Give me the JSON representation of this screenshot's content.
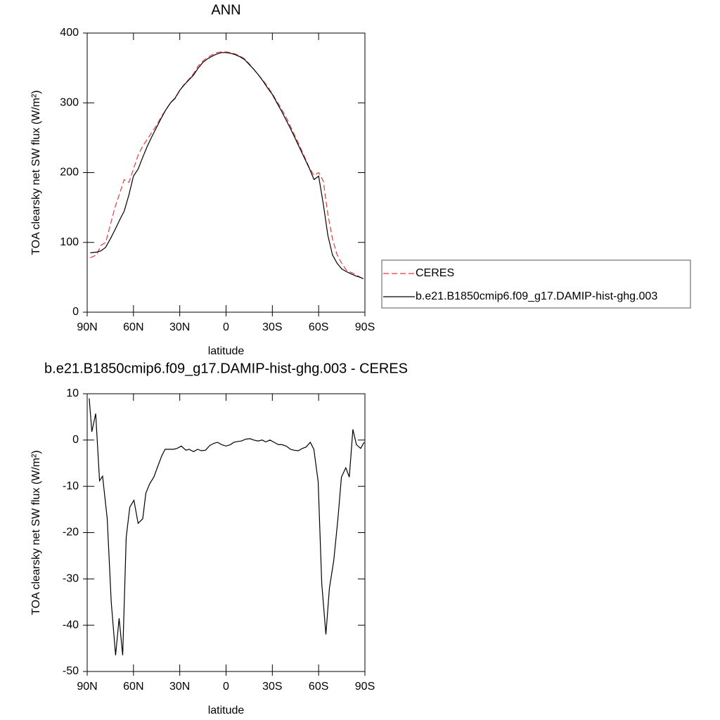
{
  "chart_data": [
    {
      "type": "line",
      "title": "ANN",
      "x_label": "latitude",
      "y_label": "TOA clearsky net SW flux (W/m²)",
      "x": [
        88,
        84,
        81,
        78,
        75,
        72,
        69,
        66,
        63,
        60,
        57,
        54,
        51,
        48,
        45,
        42,
        39,
        36,
        33,
        30,
        27,
        24,
        21,
        18,
        15,
        12,
        9,
        6,
        3,
        0,
        -3,
        -6,
        -9,
        -12,
        -15,
        -18,
        -21,
        -24,
        -27,
        -30,
        -33,
        -36,
        -39,
        -42,
        -45,
        -48,
        -51,
        -54,
        -57,
        -60,
        -63,
        -66,
        -69,
        -72,
        -75,
        -78,
        -81,
        -84,
        -87,
        -89
      ],
      "series": [
        {
          "name": "CERES",
          "color": "#e8383d",
          "dashed": true,
          "values": [
            78,
            82,
            96,
            100,
            125,
            150,
            170,
            190,
            186,
            205,
            225,
            238,
            248,
            258,
            268,
            280,
            290,
            300,
            306,
            318,
            327,
            334,
            342,
            353,
            360,
            365,
            369,
            372,
            373,
            373,
            372,
            370,
            367,
            363,
            356,
            348,
            340,
            332,
            323,
            313,
            302,
            291,
            279,
            265,
            251,
            237,
            222,
            207,
            196,
            200,
            188,
            140,
            105,
            82,
            70,
            60,
            57,
            54,
            50,
            48
          ]
        },
        {
          "name": "b.e21.B1850cmip6.f09_g17.DAMIP-hist-ghg.003",
          "color": "#000000",
          "dashed": false,
          "values": [
            85,
            86,
            88,
            93,
            105,
            118,
            132,
            145,
            168,
            195,
            205,
            222,
            238,
            252,
            265,
            278,
            290,
            300,
            307,
            318,
            326,
            333,
            340,
            350,
            358,
            363,
            367,
            370,
            372,
            372,
            371,
            369,
            366,
            362,
            355,
            348,
            340,
            331,
            321,
            312,
            300,
            288,
            275,
            262,
            248,
            234,
            220,
            206,
            190,
            195,
            155,
            110,
            82,
            70,
            62,
            58,
            55,
            52,
            50,
            48
          ]
        }
      ],
      "xlim": [
        90,
        -90
      ],
      "xticks": [
        {
          "value": 90,
          "label": "90N"
        },
        {
          "value": 60,
          "label": "60N"
        },
        {
          "value": 30,
          "label": "30N"
        },
        0,
        {
          "value": -30,
          "label": "30S"
        },
        {
          "value": -60,
          "label": "60S"
        },
        {
          "value": -90,
          "label": "90S"
        }
      ],
      "ylim": [
        0,
        400
      ],
      "yticks": [
        0,
        100,
        200,
        300,
        400
      ],
      "legend": "right"
    },
    {
      "type": "line",
      "title": "b.e21.B1850cmip6.f09_g17.DAMIP-hist-ghg.003 - CERES",
      "x_label": "latitude",
      "y_label": "TOA clearsky net SW flux (W/m²)",
      "x": [
        88.7,
        87,
        84.5,
        82,
        80,
        77,
        74.4,
        71.6,
        69.3,
        67,
        64.7,
        62.4,
        59.7,
        57,
        54,
        52,
        49.6,
        46.8,
        44,
        41.8,
        39.5,
        36.7,
        34,
        31.7,
        29,
        26,
        24,
        21,
        18.4,
        16,
        13.3,
        10.6,
        7.8,
        5.5,
        2.8,
        0,
        -2.8,
        -5,
        -7.8,
        -10,
        -12.9,
        -15.6,
        -17.9,
        -20.7,
        -23.4,
        -25.7,
        -28.5,
        -31.2,
        -34,
        -36.3,
        -39,
        -41.8,
        -44,
        -46.8,
        -49.6,
        -51.9,
        -54.6,
        -56.9,
        -59.7,
        -62,
        -64.7,
        -67,
        -69.8,
        -72.5,
        -74.8,
        -77.6,
        -79.9,
        -82.2,
        -84.5,
        -87.2,
        -89.5
      ],
      "series": [
        {
          "color": "#000000",
          "dashed": false,
          "values": [
            9,
            1.8,
            5.7,
            -8.8,
            -7.8,
            -17,
            -35,
            -46.5,
            -38.5,
            -46.5,
            -21,
            -14.5,
            -13,
            -18,
            -17,
            -11.5,
            -9.5,
            -8,
            -5.5,
            -3.5,
            -2,
            -2,
            -2,
            -1.8,
            -1.3,
            -2.2,
            -2,
            -2.5,
            -2,
            -2.3,
            -2.2,
            -1.2,
            -0.7,
            -0.5,
            -1,
            -1.3,
            -1,
            -0.5,
            -0.3,
            -0.2,
            0.2,
            0.3,
            0,
            -0.2,
            0,
            -0.4,
            0,
            -0.5,
            -1,
            -1,
            -1.3,
            -2,
            -2.2,
            -2.3,
            -1.8,
            -1.5,
            -0.5,
            -2,
            -9,
            -31,
            -42,
            -32,
            -26,
            -17,
            -8,
            -6,
            -8,
            2.3,
            -1,
            -1.8,
            -0.5
          ]
        }
      ],
      "xlim": [
        90,
        -90
      ],
      "xticks": [
        {
          "value": 90,
          "label": "90N"
        },
        {
          "value": 60,
          "label": "60N"
        },
        {
          "value": 30,
          "label": "30N"
        },
        0,
        {
          "value": -30,
          "label": "30S"
        },
        {
          "value": -60,
          "label": "60S"
        },
        {
          "value": -90,
          "label": "90S"
        }
      ],
      "ylim": [
        -50,
        10
      ],
      "yticks": [
        -50,
        -40,
        -30,
        -20,
        -10,
        0,
        10
      ]
    }
  ]
}
